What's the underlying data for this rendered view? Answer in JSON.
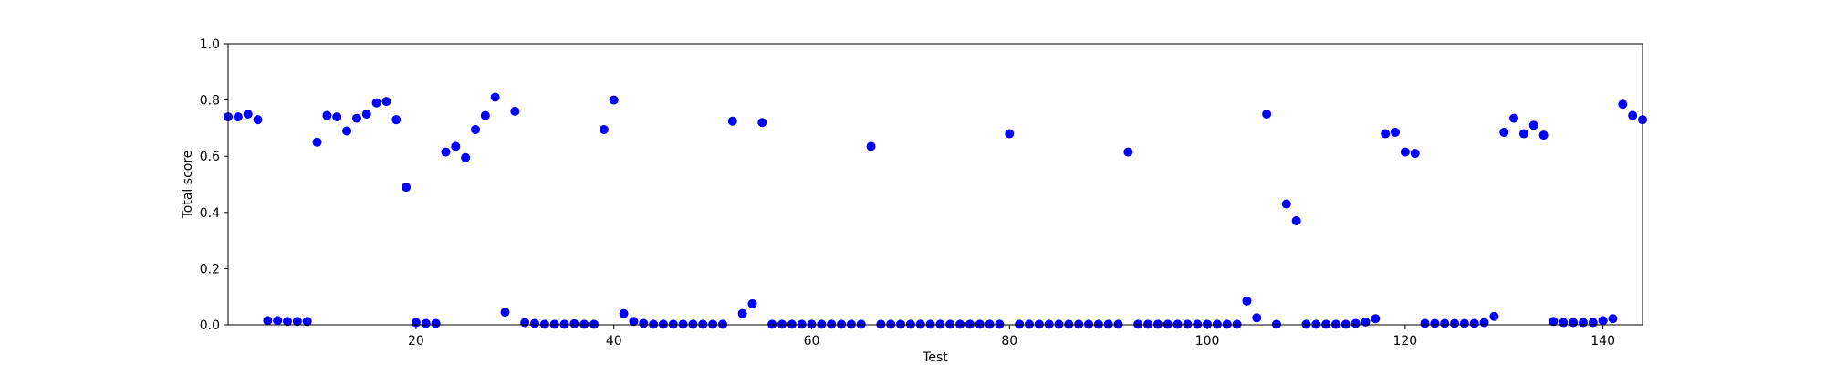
{
  "chart_data": {
    "type": "scatter",
    "title": "",
    "xlabel": "Test",
    "ylabel": "Total score",
    "xlim": [
      1,
      144
    ],
    "ylim": [
      0.0,
      1.0
    ],
    "xticks": [
      20,
      40,
      60,
      80,
      100,
      120,
      140
    ],
    "yticks": [
      0.0,
      0.2,
      0.4,
      0.6,
      0.8,
      1.0
    ],
    "xtick_labels": [
      "20",
      "40",
      "60",
      "80",
      "100",
      "120",
      "140"
    ],
    "ytick_labels": [
      "0.0",
      "0.2",
      "0.4",
      "0.6",
      "0.8",
      "1.0"
    ],
    "grid": false,
    "legend": "none",
    "marker_color": "#0000ff",
    "x": [
      1,
      2,
      3,
      4,
      5,
      6,
      7,
      8,
      9,
      10,
      11,
      12,
      13,
      14,
      15,
      16,
      17,
      18,
      19,
      20,
      21,
      22,
      23,
      24,
      25,
      26,
      27,
      28,
      29,
      30,
      31,
      32,
      33,
      34,
      35,
      36,
      37,
      38,
      39,
      40,
      41,
      42,
      43,
      44,
      45,
      46,
      47,
      48,
      49,
      50,
      51,
      52,
      53,
      54,
      55,
      56,
      57,
      58,
      59,
      60,
      61,
      62,
      63,
      64,
      65,
      66,
      67,
      68,
      69,
      70,
      71,
      72,
      73,
      74,
      75,
      76,
      77,
      78,
      79,
      80,
      81,
      82,
      83,
      84,
      85,
      86,
      87,
      88,
      89,
      90,
      91,
      92,
      93,
      94,
      95,
      96,
      97,
      98,
      99,
      100,
      101,
      102,
      103,
      104,
      105,
      106,
      107,
      108,
      109,
      110,
      111,
      112,
      113,
      114,
      115,
      116,
      117,
      118,
      119,
      120,
      121,
      122,
      123,
      124,
      125,
      126,
      127,
      128,
      129,
      130,
      131,
      132,
      133,
      134,
      135,
      136,
      137,
      138,
      139,
      140,
      141,
      142,
      143,
      144
    ],
    "y": [
      0.74,
      0.74,
      0.75,
      0.73,
      0.015,
      0.015,
      0.012,
      0.012,
      0.012,
      0.65,
      0.745,
      0.74,
      0.69,
      0.735,
      0.75,
      0.79,
      0.795,
      0.73,
      0.49,
      0.008,
      0.005,
      0.005,
      0.615,
      0.635,
      0.595,
      0.695,
      0.745,
      0.81,
      0.045,
      0.76,
      0.008,
      0.005,
      0.002,
      0.002,
      0.002,
      0.004,
      0.002,
      0.002,
      0.695,
      0.8,
      0.04,
      0.012,
      0.005,
      0.002,
      0.002,
      0.002,
      0.002,
      0.002,
      0.002,
      0.002,
      0.002,
      0.725,
      0.04,
      0.075,
      0.72,
      0.002,
      0.002,
      0.002,
      0.002,
      0.002,
      0.002,
      0.002,
      0.002,
      0.002,
      0.002,
      0.635,
      0.002,
      0.002,
      0.002,
      0.002,
      0.002,
      0.002,
      0.002,
      0.002,
      0.002,
      0.002,
      0.002,
      0.002,
      0.002,
      0.68,
      0.002,
      0.002,
      0.002,
      0.002,
      0.002,
      0.002,
      0.002,
      0.002,
      0.002,
      0.002,
      0.002,
      0.615,
      0.002,
      0.002,
      0.002,
      0.002,
      0.002,
      0.002,
      0.002,
      0.002,
      0.002,
      0.002,
      0.002,
      0.085,
      0.025,
      0.75,
      0.002,
      0.43,
      0.37,
      0.002,
      0.002,
      0.002,
      0.002,
      0.002,
      0.005,
      0.01,
      0.022,
      0.68,
      0.685,
      0.615,
      0.61,
      0.005,
      0.005,
      0.005,
      0.005,
      0.005,
      0.005,
      0.008,
      0.03,
      0.685,
      0.735,
      0.68,
      0.71,
      0.675,
      0.012,
      0.008,
      0.008,
      0.008,
      0.008,
      0.015,
      0.022,
      0.785,
      0.745,
      0.73
    ]
  }
}
